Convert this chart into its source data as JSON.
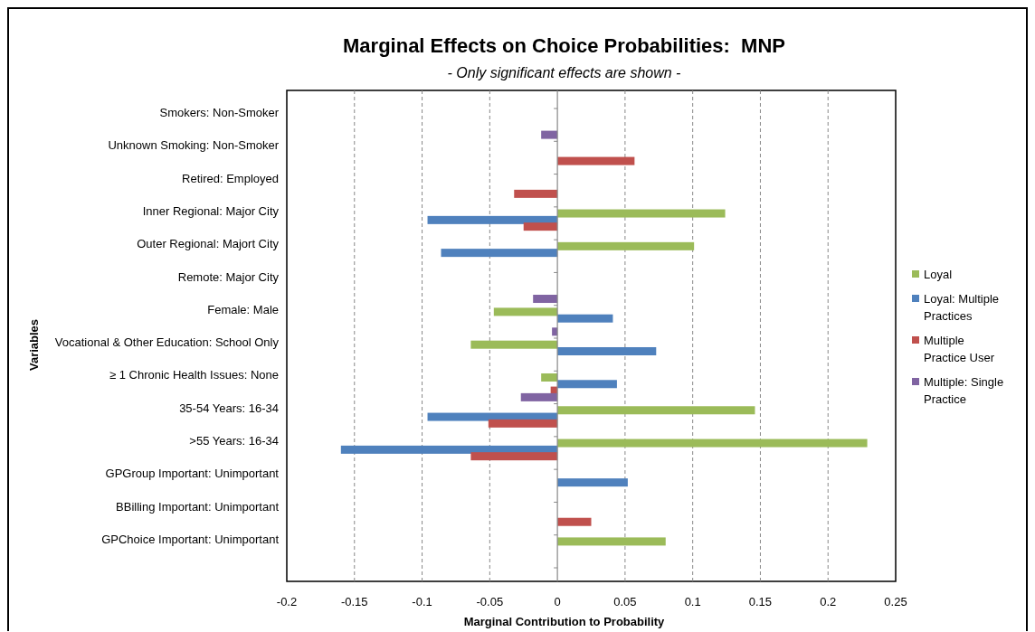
{
  "chart_data": {
    "type": "bar",
    "orientation": "horizontal",
    "title": "Marginal Effects on Choice Probabilities:  MNP",
    "subtitle": "- Only significant effects are shown -",
    "xlabel": "Marginal Contribution to Probability",
    "ylabel": "Variables",
    "categories": [
      "Smokers: Non-Smoker",
      "Unknown Smoking: Non-Smoker",
      "Retired: Employed",
      "Inner Regional: Major City",
      "Outer Regional: Majort City",
      "Remote: Major City",
      "Female: Male",
      "Vocational & Other Education: School Only",
      "≥ 1 Chronic Health Issues: None",
      "35-54 Years: 16-34",
      ">55 Years: 16-34",
      "GPGroup Important: Unimportant",
      "BBilling Important: Unimportant",
      "GPChoice Important: Unimportant"
    ],
    "series": [
      {
        "name": "Loyal",
        "color": "#9bbb59",
        "values": [
          null,
          null,
          null,
          0.124,
          0.101,
          null,
          -0.047,
          -0.064,
          -0.012,
          0.146,
          0.229,
          null,
          null,
          0.08
        ]
      },
      {
        "name": "Loyal: Multiple Practices",
        "color": "#4f81bd",
        "values": [
          null,
          null,
          null,
          -0.096,
          -0.086,
          null,
          0.041,
          0.073,
          0.044,
          -0.096,
          -0.16,
          0.052,
          null,
          null
        ]
      },
      {
        "name": "Multiple Practice User",
        "color": "#c0504d",
        "values": [
          null,
          0.057,
          -0.032,
          -0.025,
          null,
          null,
          null,
          null,
          -0.005,
          -0.051,
          -0.064,
          null,
          0.025,
          null
        ]
      },
      {
        "name": "Multiple: Single Practice",
        "color": "#8064a2",
        "values": [
          -0.012,
          null,
          null,
          null,
          null,
          -0.018,
          -0.004,
          null,
          -0.027,
          null,
          null,
          null,
          null,
          null
        ]
      }
    ],
    "xlim": [
      -0.2,
      0.25
    ],
    "xticks": [
      -0.2,
      -0.15,
      -0.1,
      -0.05,
      0,
      0.05,
      0.1,
      0.15,
      0.2,
      0.25
    ],
    "grid": "x",
    "legend": "right"
  }
}
